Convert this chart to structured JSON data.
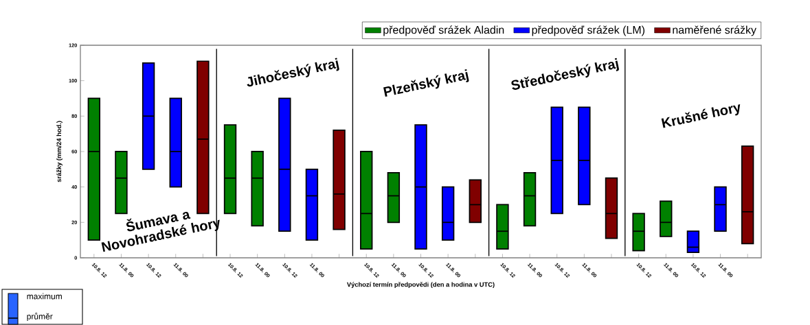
{
  "chart_data": {
    "type": "box",
    "categories": [
      "10.8. 12",
      "11.8. 00",
      "10.8. 12",
      "11.8. 00",
      null,
      "10.8. 12",
      "11.8. 00",
      "10.8. 12",
      "11.8. 00",
      null,
      "10.8. 12",
      "11.8. 00",
      "10.8. 12",
      "11.8. 00",
      null,
      "10.8. 12",
      "11.8. 00",
      "10.8. 12",
      "11.8. 00",
      null,
      "10.8. 12",
      "11.8. 00",
      "10.8. 12",
      "11.8. 00",
      null
    ],
    "series": [
      {
        "name": "předpověď srážek Aladin",
        "color": "#008000",
        "boxes": [
          {
            "low": 10,
            "q1": 10,
            "median": 60,
            "q3": 90,
            "high": 90
          },
          {
            "low": 25,
            "q1": 25,
            "median": 45,
            "q3": 60,
            "high": 60
          },
          null,
          null,
          null,
          {
            "low": 25,
            "q1": 25,
            "median": 45,
            "q3": 75,
            "high": 75
          },
          {
            "low": 18,
            "q1": 18,
            "median": 45,
            "q3": 60,
            "high": 60
          },
          null,
          null,
          null,
          {
            "low": 5,
            "q1": 5,
            "median": 25,
            "q3": 60,
            "high": 60
          },
          {
            "low": 20,
            "q1": 20,
            "median": 35,
            "q3": 48,
            "high": 48
          },
          null,
          null,
          null,
          {
            "low": 5,
            "q1": 5,
            "median": 15,
            "q3": 30,
            "high": 30
          },
          {
            "low": 18,
            "q1": 18,
            "median": 35,
            "q3": 48,
            "high": 48
          },
          null,
          null,
          null,
          {
            "low": 4,
            "q1": 4,
            "median": 15,
            "q3": 25,
            "high": 25
          },
          {
            "low": 12,
            "q1": 12,
            "median": 20,
            "q3": 32,
            "high": 32
          },
          null,
          null,
          null
        ]
      },
      {
        "name": "předpověď srážek (LM)",
        "color": "#0000ff",
        "boxes": [
          null,
          null,
          {
            "low": 50,
            "q1": 50,
            "median": 80,
            "q3": 110,
            "high": 110
          },
          {
            "low": 40,
            "q1": 40,
            "median": 60,
            "q3": 90,
            "high": 90
          },
          null,
          null,
          null,
          {
            "low": 15,
            "q1": 15,
            "median": 50,
            "q3": 90,
            "high": 90
          },
          {
            "low": 10,
            "q1": 10,
            "median": 35,
            "q3": 50,
            "high": 50
          },
          null,
          null,
          null,
          {
            "low": 5,
            "q1": 5,
            "median": 40,
            "q3": 75,
            "high": 75
          },
          {
            "low": 10,
            "q1": 10,
            "median": 20,
            "q3": 40,
            "high": 40
          },
          null,
          null,
          null,
          {
            "low": 25,
            "q1": 25,
            "median": 55,
            "q3": 85,
            "high": 85
          },
          {
            "low": 30,
            "q1": 30,
            "median": 55,
            "q3": 85,
            "high": 85
          },
          null,
          null,
          null,
          {
            "low": 3,
            "q1": 3,
            "median": 6,
            "q3": 15,
            "high": 15
          },
          {
            "low": 15,
            "q1": 15,
            "median": 30,
            "q3": 40,
            "high": 40
          },
          null
        ]
      },
      {
        "name": "naměřené srážky",
        "color": "#800000",
        "boxes": [
          null,
          null,
          null,
          null,
          {
            "low": 25,
            "q1": 25,
            "median": 67,
            "q3": 111,
            "high": 111
          },
          null,
          null,
          null,
          null,
          {
            "low": 16,
            "q1": 16,
            "median": 36,
            "q3": 72,
            "high": 72
          },
          null,
          null,
          null,
          null,
          {
            "low": 20,
            "q1": 20,
            "median": 30,
            "q3": 44,
            "high": 44
          },
          null,
          null,
          null,
          null,
          {
            "low": 11,
            "q1": 11,
            "median": 25,
            "q3": 45,
            "high": 45
          },
          null,
          null,
          null,
          null,
          {
            "low": 8,
            "q1": 8,
            "median": 26,
            "q3": 63,
            "high": 63
          }
        ]
      }
    ],
    "ylim": [
      0,
      120
    ],
    "yticks": [
      0,
      20,
      40,
      60,
      80,
      100,
      120
    ],
    "xlabel": "Výchozí termín předpovědi (den a hodina v UTC)",
    "ylabel": "srážky (mm/24 hod.)",
    "legend": "top right",
    "annotations": [
      "Šumava a Novohradské hory",
      "Jihočeský kraj",
      "Plzeňský kraj",
      "Středočeský kraj",
      "Krušné hory",
      "maximum",
      "průměr"
    ]
  }
}
